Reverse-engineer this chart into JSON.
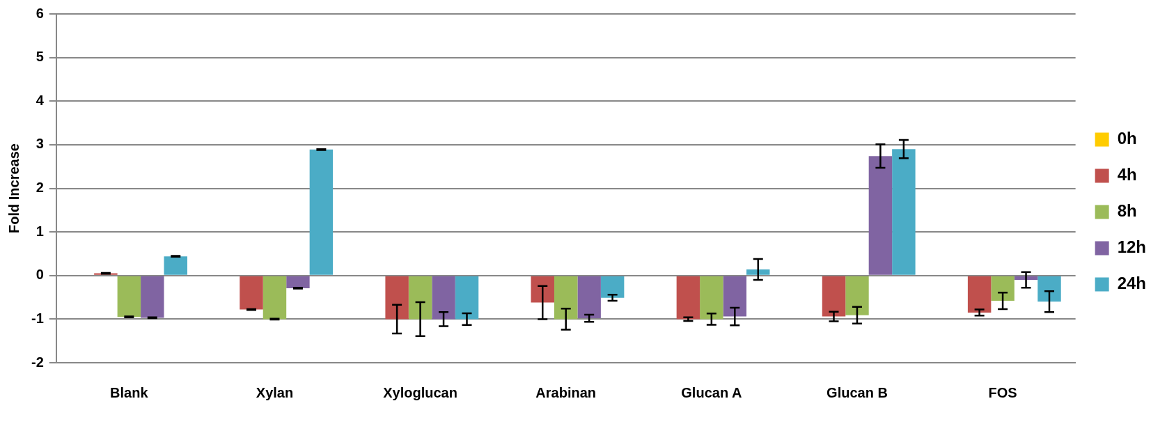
{
  "chart_data": {
    "type": "bar",
    "ylabel": "Fold Increase",
    "categories": [
      "Blank",
      "Xylan",
      "Xyloglucan",
      "Arabinan",
      "Glucan A",
      "Glucan B",
      "FOS"
    ],
    "series": [
      {
        "name": "0h",
        "color": "#ffcc00",
        "values": [
          0,
          0,
          0,
          0,
          0,
          0,
          0
        ]
      },
      {
        "name": "4h",
        "color": "#c0504d",
        "values": [
          0.05,
          -0.78,
          -1.0,
          -0.62,
          -1.0,
          -0.94,
          -0.85
        ],
        "errors": [
          0.01,
          0.01,
          0.33,
          0.38,
          0.04,
          0.11,
          0.07
        ]
      },
      {
        "name": "8h",
        "color": "#9bbb59",
        "values": [
          -0.95,
          -1.0,
          -1.0,
          -1.0,
          -1.0,
          -0.91,
          -0.58
        ],
        "errors": [
          0.01,
          0.01,
          0.39,
          0.24,
          0.13,
          0.19,
          0.19
        ]
      },
      {
        "name": "12h",
        "color": "#8064a2",
        "values": [
          -0.97,
          -0.29,
          -1.0,
          -0.98,
          -0.94,
          2.74,
          -0.1
        ],
        "errors": [
          0.01,
          0.01,
          0.16,
          0.08,
          0.2,
          0.27,
          0.18
        ]
      },
      {
        "name": "24h",
        "color": "#4bacc6",
        "values": [
          0.44,
          2.89,
          -1.0,
          -0.51,
          0.14,
          2.9,
          -0.6
        ],
        "errors": [
          0.01,
          0.01,
          0.135,
          0.07,
          0.24,
          0.21,
          0.24
        ]
      }
    ],
    "ylim": [
      -2,
      6
    ],
    "yticks": [
      -2,
      -1,
      0,
      1,
      2,
      3,
      4,
      5,
      6
    ],
    "grid": "y",
    "legend": "right"
  }
}
